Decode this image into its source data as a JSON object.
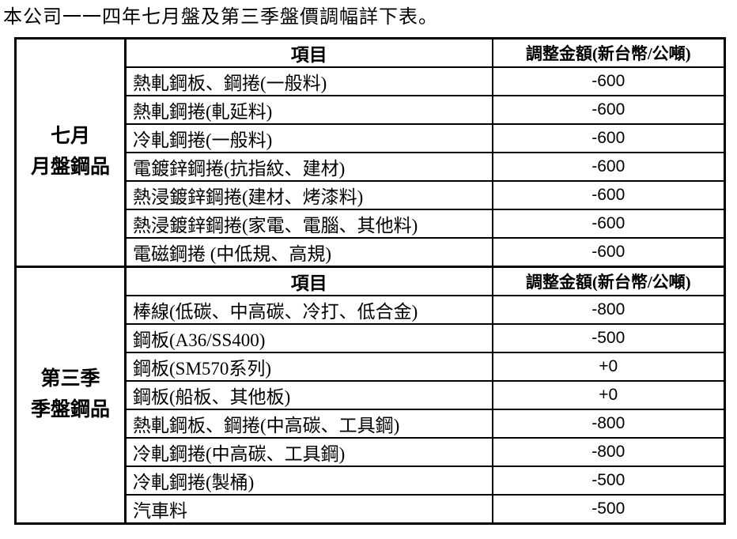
{
  "title": "本公司一一四年七月盤及第三季盤價調幅詳下表。",
  "table": {
    "sections": [
      {
        "group_label_line1": "七月",
        "group_label_line2": "月盤鋼品",
        "header": {
          "item": "項目",
          "amount": "調整金額(新台幣/公噸)"
        },
        "rows": [
          {
            "item": "熱軋鋼板、鋼捲(一般料)",
            "amount": "-600"
          },
          {
            "item": "熱軋鋼捲(軋延料)",
            "amount": "-600"
          },
          {
            "item": "冷軋鋼捲(一般料)",
            "amount": "-600"
          },
          {
            "item": "電鍍鋅鋼捲(抗指紋、建材)",
            "amount": "-600"
          },
          {
            "item": "熱浸鍍鋅鋼捲(建材、烤漆料)",
            "amount": "-600"
          },
          {
            "item": "熱浸鍍鋅鋼捲(家電、電腦、其他料)",
            "amount": "-600"
          },
          {
            "item": "電磁鋼捲 (中低規、高規)",
            "amount": "-600"
          }
        ]
      },
      {
        "group_label_line1": "第三季",
        "group_label_line2": "季盤鋼品",
        "header": {
          "item": "項目",
          "amount": "調整金額(新台幣/公噸)"
        },
        "rows": [
          {
            "item": "棒線(低碳、中高碳、冷打、低合金)",
            "amount": "-800"
          },
          {
            "item": "鋼板(A36/SS400)",
            "amount": "-500"
          },
          {
            "item": "鋼板(SM570系列)",
            "amount": "+0"
          },
          {
            "item": "鋼板(船板、其他板)",
            "amount": "+0"
          },
          {
            "item": "熱軋鋼板、鋼捲(中高碳、工具鋼)",
            "amount": "-800"
          },
          {
            "item": "冷軋鋼捲(中高碳、工具鋼)",
            "amount": "-800"
          },
          {
            "item": "冷軋鋼捲(製桶)",
            "amount": "-500"
          },
          {
            "item": "汽車料",
            "amount": "-500"
          }
        ]
      }
    ]
  }
}
